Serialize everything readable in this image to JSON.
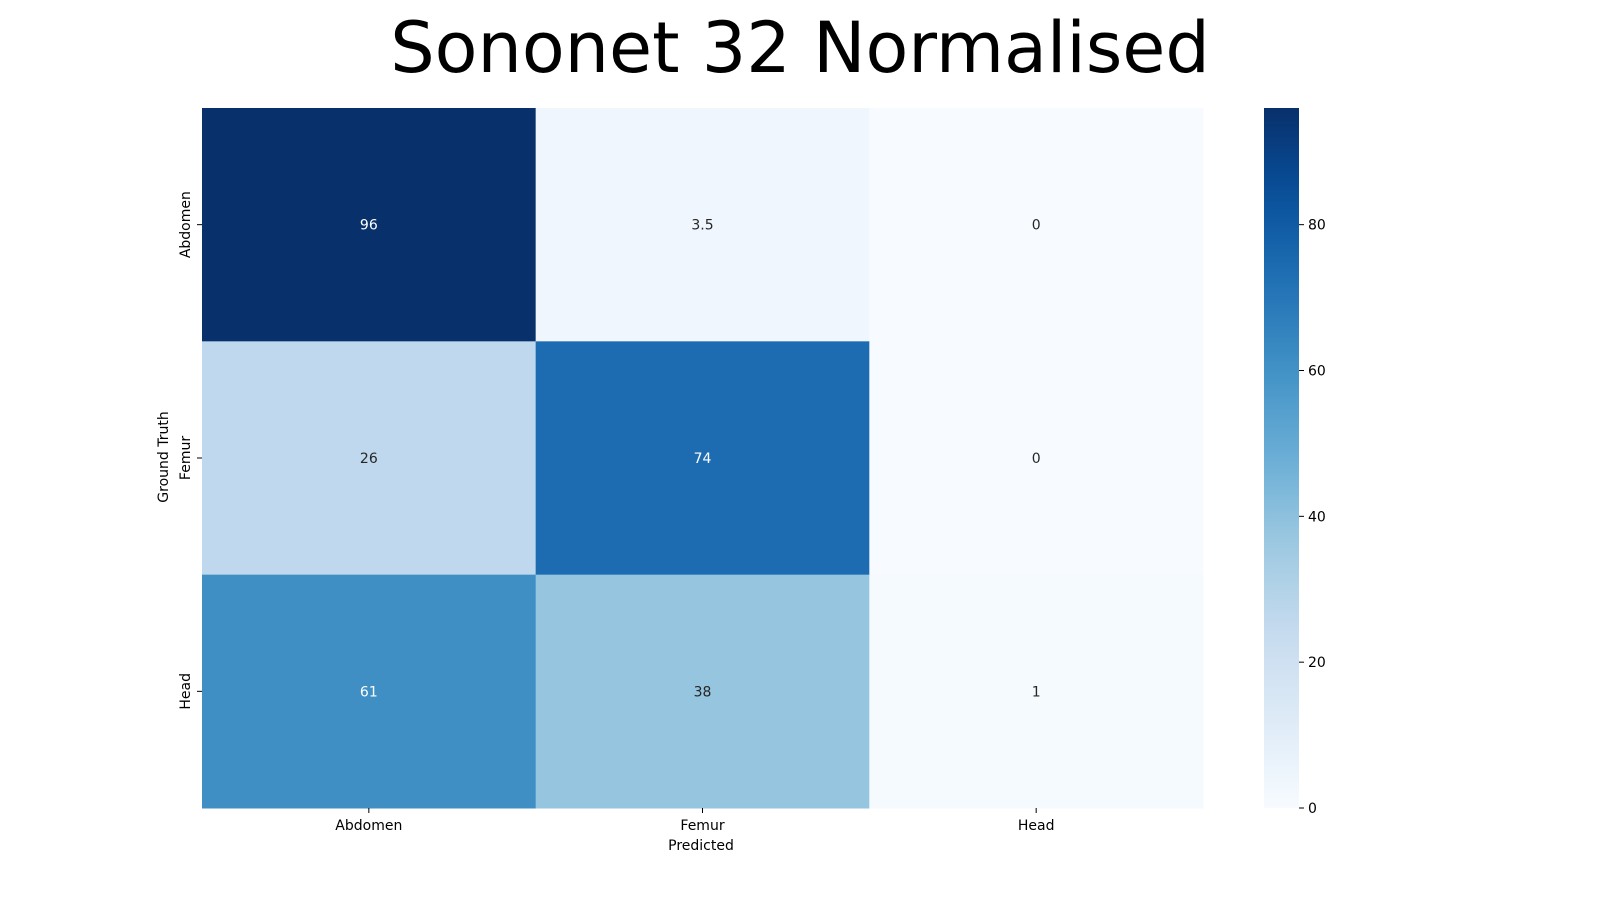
{
  "chart_data": {
    "type": "heatmap",
    "title": "Sononet 32 Normalised",
    "xlabel": "Predicted",
    "ylabel": "Ground Truth",
    "x_categories": [
      "Abdomen",
      "Femur",
      "Head"
    ],
    "y_categories": [
      "Abdomen",
      "Femur",
      "Head"
    ],
    "values": [
      [
        96,
        3.5,
        0
      ],
      [
        26,
        74,
        0
      ],
      [
        61,
        38,
        1
      ]
    ],
    "value_labels": [
      [
        "96",
        "3.5",
        "0"
      ],
      [
        "26",
        "74",
        "0"
      ],
      [
        "61",
        "38",
        "1"
      ]
    ],
    "colorbar": {
      "colormap": "Blues",
      "range": [
        0,
        96
      ],
      "ticks": [
        0,
        20,
        40,
        60,
        80
      ],
      "tick_labels": [
        "0",
        "20",
        "40",
        "60",
        "80"
      ]
    }
  }
}
